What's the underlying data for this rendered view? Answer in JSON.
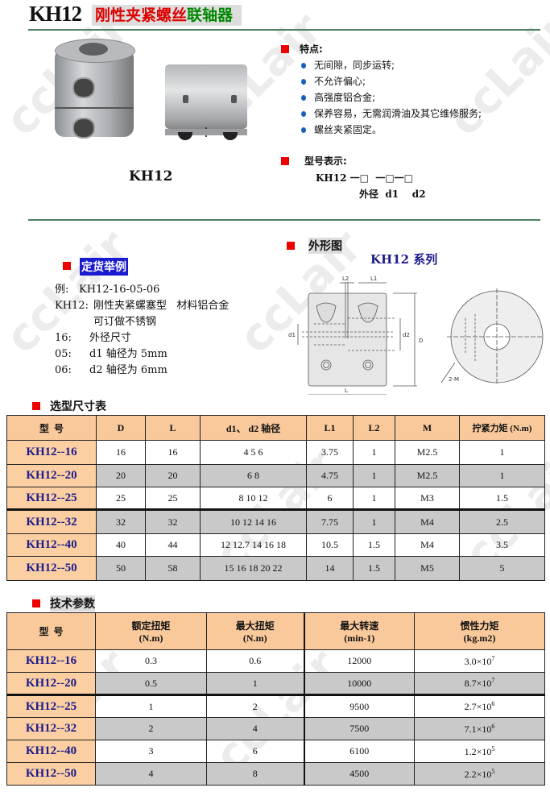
{
  "header": {
    "model": "KH12",
    "title_red": "刚性夹紧螺丝",
    "title_green": "联轴器"
  },
  "photo_caption": "KH12",
  "features": {
    "heading": "特点:",
    "items": [
      "无间隙，同步运转;",
      "不允许偏心;",
      "高强度铝合金;",
      "保养容易，无需润滑油及其它维修服务;",
      "螺丝夹紧固定。"
    ]
  },
  "model_code": {
    "heading": "型号表示:",
    "code": "KH12 一□  一□一□",
    "labels": "外径  d1    d2"
  },
  "order_example": {
    "heading": "定货举例",
    "lines": [
      {
        "k": "例:",
        "v": "KH12-16-05-06"
      },
      {
        "k": "KH12:",
        "v": "刚性夹紧螺塞型   材料铝合金"
      },
      {
        "k": "",
        "v": "可订做不锈钢"
      },
      {
        "k": "16:",
        "v": "外径尺寸"
      },
      {
        "k": "05:",
        "v": "d1 轴径为 5mm"
      },
      {
        "k": "06:",
        "v": "d2 轴径为 6mm"
      }
    ]
  },
  "drawing": {
    "heading": "外形图",
    "series": "KH12 系列",
    "labels": {
      "l2": "L2",
      "l1": "L1",
      "d1": "d1",
      "d2": "d2",
      "d": "D",
      "l": "L",
      "m": "2-M"
    }
  },
  "dim_table": {
    "heading": "选型尺寸表",
    "columns": [
      "型  号",
      "D",
      "L",
      "d1、 d2 轴径",
      "L1",
      "L2",
      "M",
      "拧紧力矩 (N.m)"
    ],
    "rows": [
      [
        "KH12--16",
        "16",
        "16",
        "4 5 6",
        "3.75",
        "1",
        "M2.5",
        "1"
      ],
      [
        "KH12--20",
        "20",
        "20",
        "6 8",
        "4.75",
        "1",
        "M2.5",
        "1"
      ],
      [
        "KH12--25",
        "25",
        "25",
        "8 10 12",
        "6",
        "1",
        "M3",
        "1.5"
      ],
      [
        "KH12--32",
        "32",
        "32",
        "10 12 14 16",
        "7.75",
        "1",
        "M4",
        "2.5"
      ],
      [
        "KH12--40",
        "40",
        "44",
        "12 12.7 14 16 18",
        "10.5",
        "1.5",
        "M4",
        "3.5"
      ],
      [
        "KH12--50",
        "50",
        "58",
        "15 16 18 20 22",
        "14",
        "1.5",
        "M5",
        "5"
      ]
    ]
  },
  "tech_table": {
    "heading": "技术参数",
    "columns": [
      {
        "name": "型  号",
        "unit": ""
      },
      {
        "name": "额定扭矩",
        "unit": "(N.m)"
      },
      {
        "name": "最大扭矩",
        "unit": "(N.m)"
      },
      {
        "name": "最大转速",
        "unit": "(min-1)"
      },
      {
        "name": "惯性力矩",
        "unit": "(kg.m2)"
      }
    ],
    "rows": [
      {
        "model": "KH12--16",
        "rated": "0.3",
        "max": "0.6",
        "speed": "12000",
        "inertia": "3.0×10",
        "exp": "7"
      },
      {
        "model": "KH12--20",
        "rated": "0.5",
        "max": "1",
        "speed": "10000",
        "inertia": "8.7×10",
        "exp": "7"
      },
      {
        "model": "KH12--25",
        "rated": "1",
        "max": "2",
        "speed": "9500",
        "inertia": "2.7×10",
        "exp": "6"
      },
      {
        "model": "KH12--32",
        "rated": "2",
        "max": "4",
        "speed": "7500",
        "inertia": "7.1×10",
        "exp": "6"
      },
      {
        "model": "KH12--40",
        "rated": "3",
        "max": "6",
        "speed": "6100",
        "inertia": "1.2×10",
        "exp": "5"
      },
      {
        "model": "KH12--50",
        "rated": "4",
        "max": "8",
        "speed": "4500",
        "inertia": "2.2×10",
        "exp": "5"
      }
    ]
  },
  "colors": {
    "header_bg": "#f9c99b",
    "grey_row": "#c9c9c9",
    "model_text": "#1c1c8a",
    "accent_red": "#ee0000",
    "rule_green": "#4d7f5e"
  },
  "watermark": "ccLair"
}
